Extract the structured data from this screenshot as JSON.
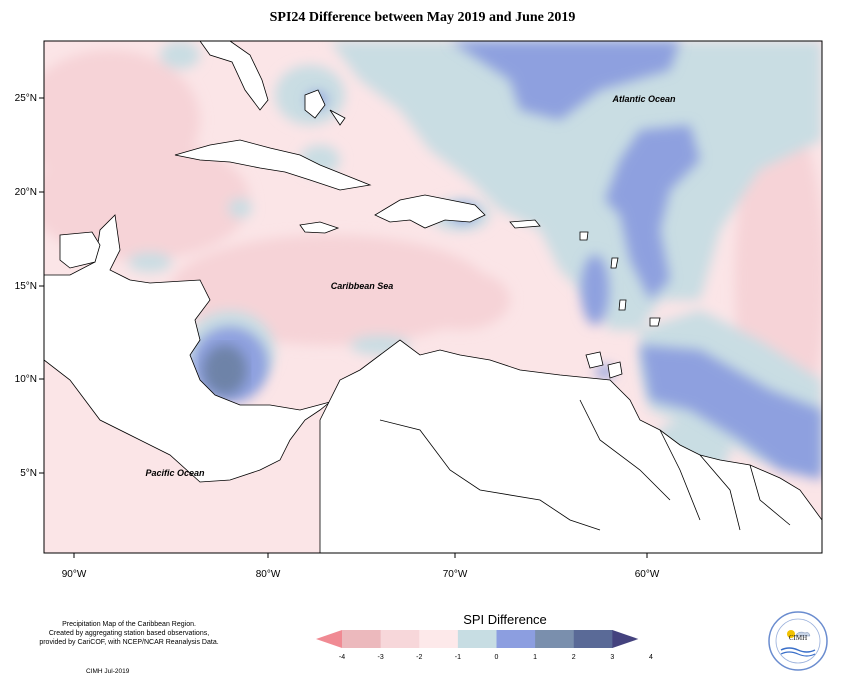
{
  "title": "SPI24 Difference between May 2019 and June 2019",
  "map": {
    "lon_ticks": [
      "90°W",
      "80°W",
      "70°W",
      "60°W"
    ],
    "lat_ticks": [
      "25°N",
      "20°N",
      "15°N",
      "10°N",
      "5°N"
    ],
    "labels": {
      "atlantic": "Atlantic Ocean",
      "caribbean": "Caribbean Sea",
      "pacific": "Pacific Ocean"
    }
  },
  "footer": {
    "line1": "Precipitation Map of the Caribbean Region.",
    "line2": "Created by aggregating station based observations,",
    "line3": "provided by CariCOF, with NCEP/NCAR Reanalysis Data.",
    "credit": "CIMH Jul-2019"
  },
  "legend": {
    "title": "SPI Difference",
    "ticks": [
      "-4",
      "-3",
      "-2",
      "-1",
      "0",
      "1",
      "2",
      "3",
      "4"
    ],
    "colors": [
      "#f08a93",
      "#ecb9bd",
      "#f7d7da",
      "#fde9ea",
      "#c7dde3",
      "#8c9ee0",
      "#7a8fad",
      "#5a6a97",
      "#44427e"
    ]
  },
  "logo": {
    "text": "CIMH"
  }
}
